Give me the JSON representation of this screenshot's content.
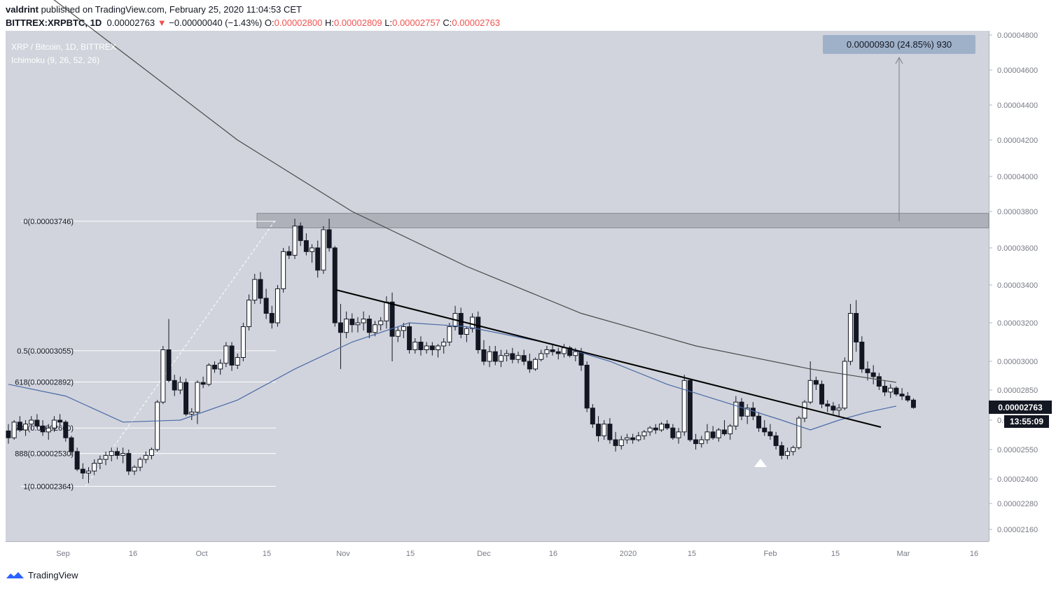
{
  "header": {
    "author": "valdrint",
    "published_text": " published on TradingView.com, February 25, 2020 11:04:53 CET",
    "symbol": "BITTREX:XRPBTC, 1D",
    "last": "0.00002763",
    "change": "−0.00000040 (−1.43%)",
    "o_label": "O:",
    "o_value": "0.00002800",
    "h_label": "H:",
    "h_value": "0.00002809",
    "l_label": "L:",
    "l_value": "0.00002757",
    "c_label": "C:",
    "c_value": "0.00002763"
  },
  "legend": {
    "title": "XRP / Bitcoin, 1D, BITTREX",
    "indicator": "Ichimoku (9, 26, 52, 26)"
  },
  "measure": {
    "label": "0.00000930 (24.85%) 930"
  },
  "price_tags": {
    "last": "0.00002763",
    "countdown": "13:55:09"
  },
  "footer": {
    "brand": "TradingView"
  },
  "colors": {
    "background": "#d1d4dc",
    "candle_up": "#ffffff",
    "candle_down": "#131722",
    "ma_dark": "#4a4a4a",
    "ma_blue": "#4a6aa8",
    "measure_bg": "#9fb1c9"
  },
  "chart_data": {
    "type": "candlestick",
    "y_ticks": [
      "0.00004800",
      "0.00004600",
      "0.00004400",
      "0.00004200",
      "0.00004000",
      "0.00003800",
      "0.00003600",
      "0.00003400",
      "0.00003200",
      "0.00003000",
      "0.00002850",
      "0.00002700",
      "0.00002550",
      "0.00002400",
      "0.00002280",
      "0.00002160"
    ],
    "x_ticks": [
      "Sep",
      "16",
      "Oct",
      "15",
      "Nov",
      "15",
      "Dec",
      "16",
      "2020",
      "15",
      "Feb",
      "15",
      "Mar",
      "16"
    ],
    "fib_levels": [
      {
        "label": "0(0.00003746)",
        "value": 3.746e-05
      },
      {
        "label": "0.5(0.00003055)",
        "value": 3.055e-05
      },
      {
        "label": "618(0.00002892)",
        "value": 2.892e-05
      },
      {
        "label": "786(0.00002660)",
        "value": 2.66e-05
      },
      {
        "label": "888(0.00002530)",
        "value": 2.53e-05
      },
      {
        "label": "1(0.00002364)",
        "value": 2.364e-05
      }
    ],
    "resistance_zone": [
      3.71e-05,
      3.79e-05
    ],
    "descending_trendline": {
      "from": "2019-10-30",
      "to": "2020-02-25"
    },
    "ohlc": [
      [
        2645,
        2680,
        2580,
        2610
      ],
      [
        2610,
        2700,
        2600,
        2690
      ],
      [
        2690,
        2720,
        2640,
        2650
      ],
      [
        2650,
        2700,
        2620,
        2680
      ],
      [
        2680,
        2720,
        2650,
        2700
      ],
      [
        2700,
        2730,
        2660,
        2670
      ],
      [
        2670,
        2700,
        2620,
        2640
      ],
      [
        2640,
        2680,
        2600,
        2660
      ],
      [
        2660,
        2720,
        2640,
        2700
      ],
      [
        2700,
        2730,
        2670,
        2690
      ],
      [
        2690,
        2700,
        2590,
        2610
      ],
      [
        2610,
        2620,
        2520,
        2540
      ],
      [
        2540,
        2560,
        2440,
        2450
      ],
      [
        2450,
        2480,
        2400,
        2430
      ],
      [
        2430,
        2460,
        2380,
        2440
      ],
      [
        2440,
        2500,
        2420,
        2480
      ],
      [
        2480,
        2520,
        2450,
        2500
      ],
      [
        2500,
        2540,
        2470,
        2520
      ],
      [
        2520,
        2560,
        2490,
        2540
      ],
      [
        2540,
        2560,
        2500,
        2520
      ],
      [
        2520,
        2560,
        2480,
        2530
      ],
      [
        2530,
        2550,
        2420,
        2440
      ],
      [
        2440,
        2470,
        2420,
        2460
      ],
      [
        2460,
        2510,
        2440,
        2500
      ],
      [
        2500,
        2540,
        2480,
        2520
      ],
      [
        2520,
        2560,
        2500,
        2550
      ],
      [
        2550,
        2800,
        2540,
        2790
      ],
      [
        2790,
        3080,
        2780,
        3060
      ],
      [
        3060,
        3220,
        2890,
        2900
      ],
      [
        2900,
        2930,
        2820,
        2850
      ],
      [
        2850,
        2920,
        2830,
        2890
      ],
      [
        2890,
        2910,
        2720,
        2730
      ],
      [
        2730,
        2760,
        2700,
        2740
      ],
      [
        2740,
        2900,
        2680,
        2890
      ],
      [
        2890,
        2920,
        2860,
        2880
      ],
      [
        2880,
        2990,
        2870,
        2980
      ],
      [
        2980,
        3000,
        2940,
        2960
      ],
      [
        2960,
        3010,
        2930,
        2990
      ],
      [
        2990,
        3100,
        2970,
        3080
      ],
      [
        3080,
        3100,
        2950,
        2980
      ],
      [
        2980,
        3040,
        2960,
        3020
      ],
      [
        3020,
        3200,
        3000,
        3180
      ],
      [
        3180,
        3350,
        3160,
        3320
      ],
      [
        3320,
        3460,
        3300,
        3430
      ],
      [
        3430,
        3470,
        3300,
        3330
      ],
      [
        3330,
        3380,
        3220,
        3250
      ],
      [
        3250,
        3290,
        3170,
        3200
      ],
      [
        3200,
        3400,
        3180,
        3380
      ],
      [
        3380,
        3600,
        3360,
        3580
      ],
      [
        3580,
        3610,
        3540,
        3560
      ],
      [
        3560,
        3760,
        3540,
        3720
      ],
      [
        3720,
        3740,
        3610,
        3640
      ],
      [
        3640,
        3680,
        3560,
        3580
      ],
      [
        3580,
        3620,
        3520,
        3600
      ],
      [
        3600,
        3640,
        3440,
        3480
      ],
      [
        3480,
        3720,
        3460,
        3700
      ],
      [
        3700,
        3760,
        3580,
        3600
      ],
      [
        3600,
        3610,
        3180,
        3200
      ],
      [
        3200,
        3300,
        2960,
        3150
      ],
      [
        3150,
        3260,
        3120,
        3220
      ],
      [
        3220,
        3250,
        3150,
        3190
      ],
      [
        3190,
        3230,
        3150,
        3200
      ],
      [
        3200,
        3260,
        3160,
        3220
      ],
      [
        3220,
        3240,
        3120,
        3150
      ],
      [
        3150,
        3210,
        3130,
        3190
      ],
      [
        3190,
        3230,
        3160,
        3210
      ],
      [
        3210,
        3340,
        3170,
        3310
      ],
      [
        3310,
        3360,
        3000,
        3130
      ],
      [
        3130,
        3180,
        3100,
        3160
      ],
      [
        3160,
        3200,
        3120,
        3180
      ],
      [
        3180,
        3200,
        3040,
        3060
      ],
      [
        3060,
        3120,
        3040,
        3100
      ],
      [
        3100,
        3130,
        3030,
        3060
      ],
      [
        3060,
        3100,
        3040,
        3080
      ],
      [
        3080,
        3100,
        3030,
        3060
      ],
      [
        3060,
        3090,
        3020,
        3080
      ],
      [
        3080,
        3120,
        3040,
        3100
      ],
      [
        3100,
        3200,
        3080,
        3180
      ],
      [
        3180,
        3290,
        3160,
        3250
      ],
      [
        3250,
        3280,
        3120,
        3140
      ],
      [
        3140,
        3180,
        3100,
        3170
      ],
      [
        3170,
        3250,
        3150,
        3230
      ],
      [
        3230,
        3260,
        3040,
        3060
      ],
      [
        3060,
        3110,
        2980,
        3000
      ],
      [
        3000,
        3080,
        2970,
        3050
      ],
      [
        3050,
        3080,
        2980,
        3000
      ],
      [
        3000,
        3060,
        2970,
        3030
      ],
      [
        3030,
        3060,
        3000,
        3040
      ],
      [
        3040,
        3070,
        2990,
        3010
      ],
      [
        3010,
        3050,
        2990,
        3030
      ],
      [
        3030,
        3060,
        2980,
        3000
      ],
      [
        3000,
        3040,
        2940,
        2960
      ],
      [
        2960,
        3020,
        2950,
        3010
      ],
      [
        3010,
        3060,
        3000,
        3040
      ],
      [
        3040,
        3080,
        3020,
        3060
      ],
      [
        3060,
        3090,
        3030,
        3050
      ],
      [
        3050,
        3070,
        3010,
        3040
      ],
      [
        3040,
        3090,
        3020,
        3070
      ],
      [
        3070,
        3080,
        3020,
        3030
      ],
      [
        3030,
        3070,
        3000,
        3050
      ],
      [
        3050,
        3070,
        2950,
        2980
      ],
      [
        2980,
        3000,
        2740,
        2760
      ],
      [
        2760,
        2780,
        2660,
        2680
      ],
      [
        2680,
        2720,
        2590,
        2620
      ],
      [
        2620,
        2700,
        2600,
        2680
      ],
      [
        2680,
        2710,
        2580,
        2600
      ],
      [
        2600,
        2640,
        2540,
        2570
      ],
      [
        2570,
        2620,
        2550,
        2600
      ],
      [
        2600,
        2630,
        2580,
        2610
      ],
      [
        2610,
        2630,
        2580,
        2600
      ],
      [
        2600,
        2640,
        2590,
        2620
      ],
      [
        2620,
        2650,
        2600,
        2640
      ],
      [
        2640,
        2670,
        2620,
        2660
      ],
      [
        2660,
        2680,
        2630,
        2650
      ],
      [
        2650,
        2690,
        2640,
        2680
      ],
      [
        2680,
        2700,
        2650,
        2660
      ],
      [
        2660,
        2680,
        2600,
        2610
      ],
      [
        2610,
        2660,
        2580,
        2640
      ],
      [
        2640,
        2930,
        2620,
        2900
      ],
      [
        2900,
        2910,
        2590,
        2600
      ],
      [
        2600,
        2630,
        2550,
        2580
      ],
      [
        2580,
        2620,
        2560,
        2600
      ],
      [
        2600,
        2680,
        2580,
        2640
      ],
      [
        2640,
        2670,
        2600,
        2610
      ],
      [
        2610,
        2660,
        2590,
        2650
      ],
      [
        2650,
        2700,
        2620,
        2630
      ],
      [
        2630,
        2680,
        2600,
        2670
      ],
      [
        2670,
        2820,
        2650,
        2790
      ],
      [
        2790,
        2810,
        2700,
        2720
      ],
      [
        2720,
        2780,
        2680,
        2760
      ],
      [
        2760,
        2790,
        2700,
        2720
      ],
      [
        2720,
        2740,
        2640,
        2660
      ],
      [
        2660,
        2700,
        2620,
        2640
      ],
      [
        2640,
        2680,
        2600,
        2620
      ],
      [
        2620,
        2640,
        2550,
        2570
      ],
      [
        2570,
        2590,
        2500,
        2520
      ],
      [
        2520,
        2560,
        2500,
        2540
      ],
      [
        2540,
        2570,
        2520,
        2560
      ],
      [
        2560,
        2720,
        2550,
        2710
      ],
      [
        2710,
        2800,
        2690,
        2790
      ],
      [
        2790,
        3000,
        2780,
        2900
      ],
      [
        2900,
        2920,
        2850,
        2880
      ],
      [
        2880,
        2900,
        2760,
        2780
      ],
      [
        2780,
        2800,
        2740,
        2770
      ],
      [
        2770,
        2790,
        2730,
        2750
      ],
      [
        2750,
        2780,
        2720,
        2760
      ],
      [
        2760,
        3020,
        2750,
        3000
      ],
      [
        3000,
        3300,
        2980,
        3250
      ],
      [
        3250,
        3320,
        3050,
        3100
      ],
      [
        3100,
        3130,
        2940,
        2960
      ],
      [
        2960,
        3000,
        2900,
        2940
      ],
      [
        2940,
        2980,
        2880,
        2920
      ],
      [
        2920,
        2940,
        2850,
        2870
      ],
      [
        2870,
        2900,
        2820,
        2840
      ],
      [
        2840,
        2880,
        2810,
        2860
      ],
      [
        2860,
        2870,
        2820,
        2830
      ],
      [
        2830,
        2860,
        2800,
        2820
      ],
      [
        2820,
        2840,
        2790,
        2800
      ],
      [
        2800,
        2809,
        2757,
        2763
      ]
    ],
    "ma_dark": [
      [
        0,
        5200
      ],
      [
        20,
        4700
      ],
      [
        40,
        4200
      ],
      [
        60,
        3800
      ],
      [
        80,
        3500
      ],
      [
        100,
        3250
      ],
      [
        120,
        3080
      ],
      [
        140,
        2960
      ],
      [
        155,
        2890
      ]
    ],
    "ma_blue": [
      [
        0,
        2880
      ],
      [
        10,
        2820
      ],
      [
        20,
        2690
      ],
      [
        30,
        2700
      ],
      [
        40,
        2800
      ],
      [
        50,
        2960
      ],
      [
        60,
        3100
      ],
      [
        70,
        3200
      ],
      [
        80,
        3180
      ],
      [
        95,
        3090
      ],
      [
        105,
        3000
      ],
      [
        115,
        2880
      ],
      [
        125,
        2790
      ],
      [
        135,
        2700
      ],
      [
        140,
        2650
      ],
      [
        145,
        2700
      ],
      [
        150,
        2740
      ],
      [
        155,
        2770
      ]
    ],
    "measure_value": "0.00000930 (24.85%) 930"
  }
}
